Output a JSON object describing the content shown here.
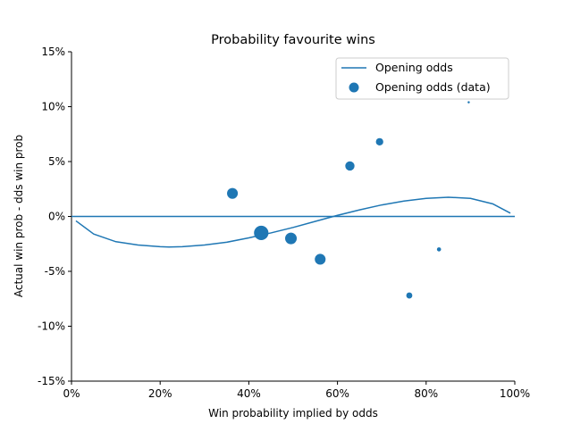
{
  "chart_data": {
    "type": "scatter",
    "title": "Probability favourite wins",
    "xlabel": "Win probability implied by odds",
    "ylabel": "Actual win prob - dds win prob",
    "xlim": [
      0,
      1
    ],
    "ylim": [
      -0.15,
      0.15
    ],
    "x_ticks": [
      0,
      0.2,
      0.4,
      0.6,
      0.8,
      1.0
    ],
    "x_tick_labels": [
      "0%",
      "20%",
      "40%",
      "60%",
      "80%",
      "100%"
    ],
    "y_ticks": [
      -0.15,
      -0.1,
      -0.05,
      0,
      0.05,
      0.1,
      0.15
    ],
    "y_tick_labels": [
      "-15%",
      "-10%",
      "-5%",
      "0%",
      "5%",
      "10%",
      "15%"
    ],
    "grid": false,
    "legend_position": "top-right",
    "color": "#1f77b4",
    "series": [
      {
        "name": "Opening odds",
        "kind": "line",
        "x": [
          0.01,
          0.05,
          0.1,
          0.15,
          0.2,
          0.22,
          0.25,
          0.3,
          0.35,
          0.4,
          0.45,
          0.5,
          0.55,
          0.6,
          0.65,
          0.7,
          0.75,
          0.8,
          0.85,
          0.9,
          0.95,
          0.99
        ],
        "y": [
          -0.004,
          -0.016,
          -0.023,
          -0.026,
          -0.0275,
          -0.0278,
          -0.0275,
          -0.026,
          -0.0235,
          -0.0195,
          -0.015,
          -0.01,
          -0.0045,
          0.001,
          0.006,
          0.0105,
          0.014,
          0.0165,
          0.0175,
          0.0165,
          0.0115,
          0.003
        ]
      },
      {
        "name": "Opening odds (data)",
        "kind": "scatter",
        "x": [
          0.363,
          0.428,
          0.495,
          0.561,
          0.628,
          0.695,
          0.762,
          0.829,
          0.896
        ],
        "y": [
          0.021,
          -0.015,
          -0.02,
          -0.039,
          0.046,
          0.068,
          -0.072,
          -0.03,
          0.104
        ],
        "sizes": [
          95,
          170,
          110,
          95,
          70,
          45,
          30,
          14,
          4
        ]
      }
    ],
    "reference_line": {
      "y": 0
    }
  }
}
